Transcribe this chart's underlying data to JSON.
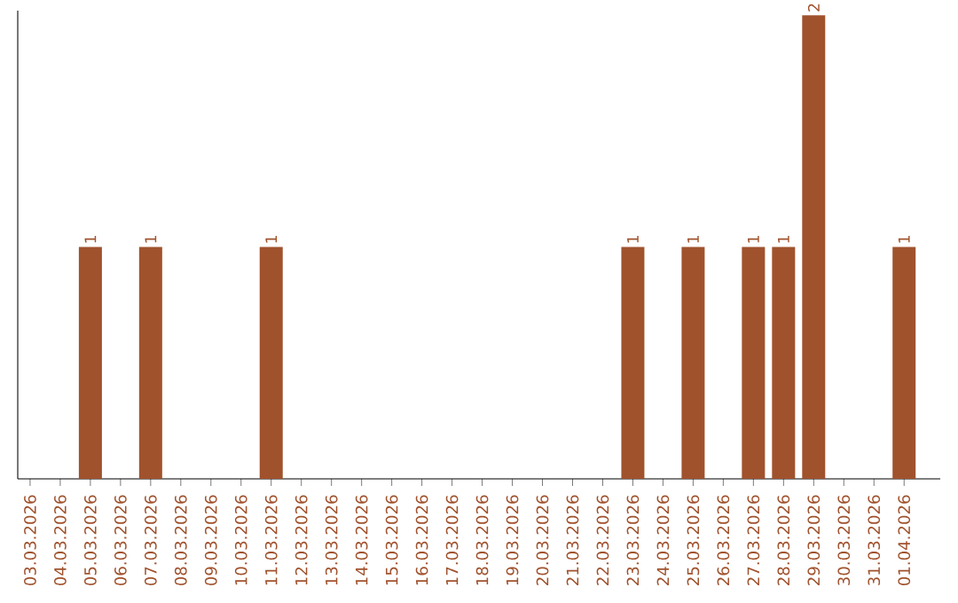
{
  "chart_data": {
    "type": "bar",
    "categories": [
      "03.03.2026",
      "04.03.2026",
      "05.03.2026",
      "06.03.2026",
      "07.03.2026",
      "08.03.2026",
      "09.03.2026",
      "10.03.2026",
      "11.03.2026",
      "12.03.2026",
      "13.03.2026",
      "14.03.2026",
      "15.03.2026",
      "16.03.2026",
      "17.03.2026",
      "18.03.2026",
      "19.03.2026",
      "20.03.2026",
      "21.03.2026",
      "22.03.2026",
      "23.03.2026",
      "24.03.2026",
      "25.03.2026",
      "26.03.2026",
      "27.03.2026",
      "28.03.2026",
      "29.03.2026",
      "30.03.2026",
      "31.03.2026",
      "01.04.2026"
    ],
    "values": [
      0,
      0,
      1,
      0,
      1,
      0,
      0,
      0,
      1,
      0,
      0,
      0,
      0,
      0,
      0,
      0,
      0,
      0,
      0,
      0,
      1,
      0,
      1,
      0,
      1,
      1,
      2,
      0,
      0,
      1
    ],
    "value_labels": [
      null,
      null,
      "1",
      null,
      "1",
      null,
      null,
      null,
      "1",
      null,
      null,
      null,
      null,
      null,
      null,
      null,
      null,
      null,
      null,
      null,
      "1",
      null,
      "1",
      null,
      "1",
      "1",
      "2",
      null,
      null,
      "1"
    ],
    "color": "#a0522d"
  }
}
